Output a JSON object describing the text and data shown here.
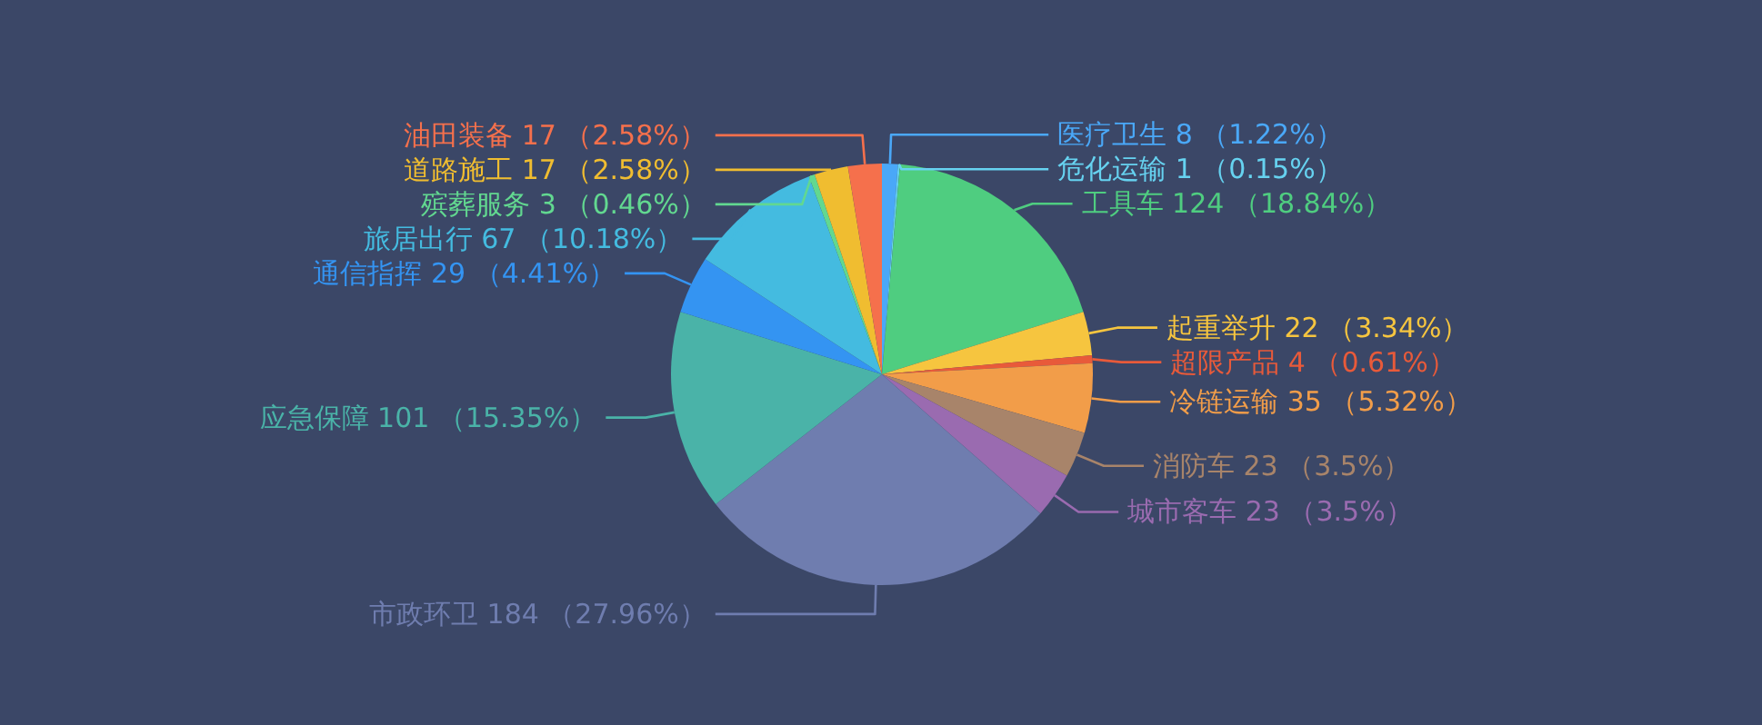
{
  "chart_data": {
    "type": "pie",
    "categories": [
      "医疗卫生",
      "危化运输",
      "工具车",
      "起重举升",
      "超限产品",
      "冷链运输",
      "消防车",
      "城市客车",
      "市政环卫",
      "应急保障",
      "通信指挥",
      "旅居出行",
      "殡葬服务",
      "道路施工",
      "油田装备"
    ],
    "values": [
      8,
      1,
      124,
      22,
      4,
      35,
      23,
      23,
      184,
      101,
      29,
      67,
      3,
      17,
      17
    ],
    "value_labels": [
      "8 （1.22%）",
      "1 （0.15%）",
      "124 （18.84%）",
      "22 （3.34%）",
      "4 （0.61%）",
      "35 （5.32%）",
      "23 （3.5%）",
      "23 （3.5%）",
      "184 （27.96%）",
      "101 （15.35%）",
      "29 （4.41%）",
      "67 （10.18%）",
      "3 （0.46%）",
      "17 （2.58%）",
      "17 （2.58%）"
    ],
    "colors": [
      "#4aa8f8",
      "#66d2f0",
      "#4fcd80",
      "#f6c53f",
      "#e85a3a",
      "#f29d49",
      "#a8846a",
      "#9a6bb0",
      "#6f7daf",
      "#4ab3a8",
      "#3494f2",
      "#44bbe0",
      "#62d890",
      "#f0bd30",
      "#f5704c"
    ]
  }
}
